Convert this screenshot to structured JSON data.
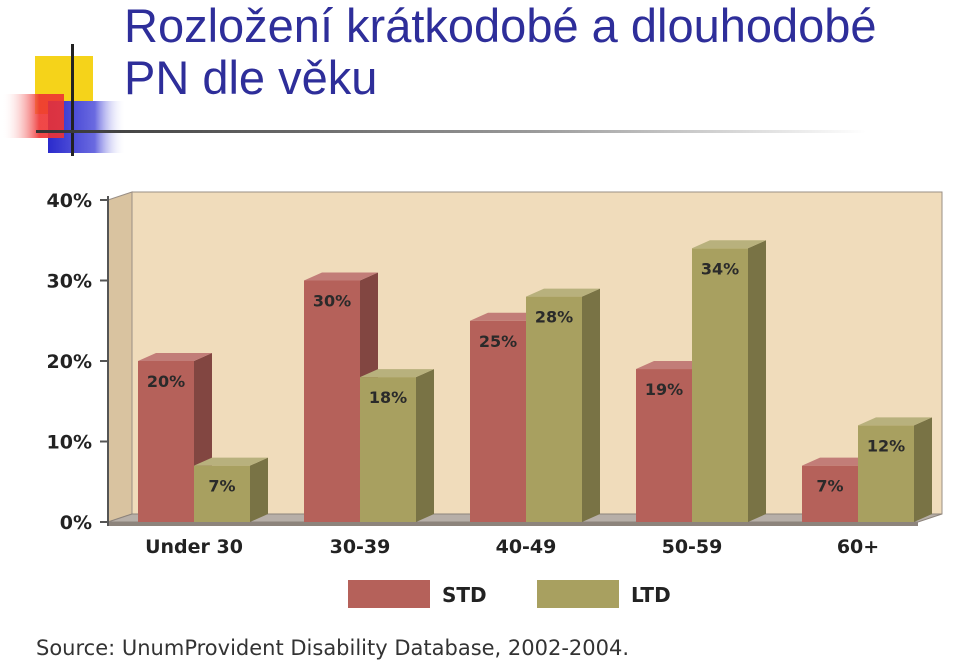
{
  "slide": {
    "title_line1": "Rozložení krátkodobé a dlouhodobé",
    "title_line2": "PN dle věku",
    "source": "Source: UnumProvident Disability Database, 2002-2004."
  },
  "colors": {
    "title": "#2e2e9a",
    "plot_background": "#f0dcbb",
    "std": "#b5615a",
    "ltd": "#a8a060",
    "deco_yellow": "#f5d31a",
    "deco_blue": "#2a2acc",
    "deco_red": "#ee3333"
  },
  "chart_data": {
    "type": "bar",
    "title": "",
    "xlabel": "",
    "ylabel": "",
    "categories": [
      "Under 30",
      "30-39",
      "40-49",
      "50-59",
      "60+"
    ],
    "series": [
      {
        "name": "STD",
        "values": [
          20,
          30,
          25,
          19,
          7
        ],
        "labels": [
          "20%",
          "30%",
          "25%",
          "19%",
          "7%"
        ]
      },
      {
        "name": "LTD",
        "values": [
          7,
          18,
          28,
          34,
          12
        ],
        "labels": [
          "7%",
          "18%",
          "28%",
          "34%",
          "12%"
        ]
      }
    ],
    "ylim": [
      0,
      40
    ],
    "yticks": [
      0,
      10,
      20,
      30,
      40
    ],
    "ytick_labels": [
      "0%",
      "10%",
      "20%",
      "30%",
      "40%"
    ],
    "grid": false,
    "legend": "bottom",
    "style": "3d"
  }
}
